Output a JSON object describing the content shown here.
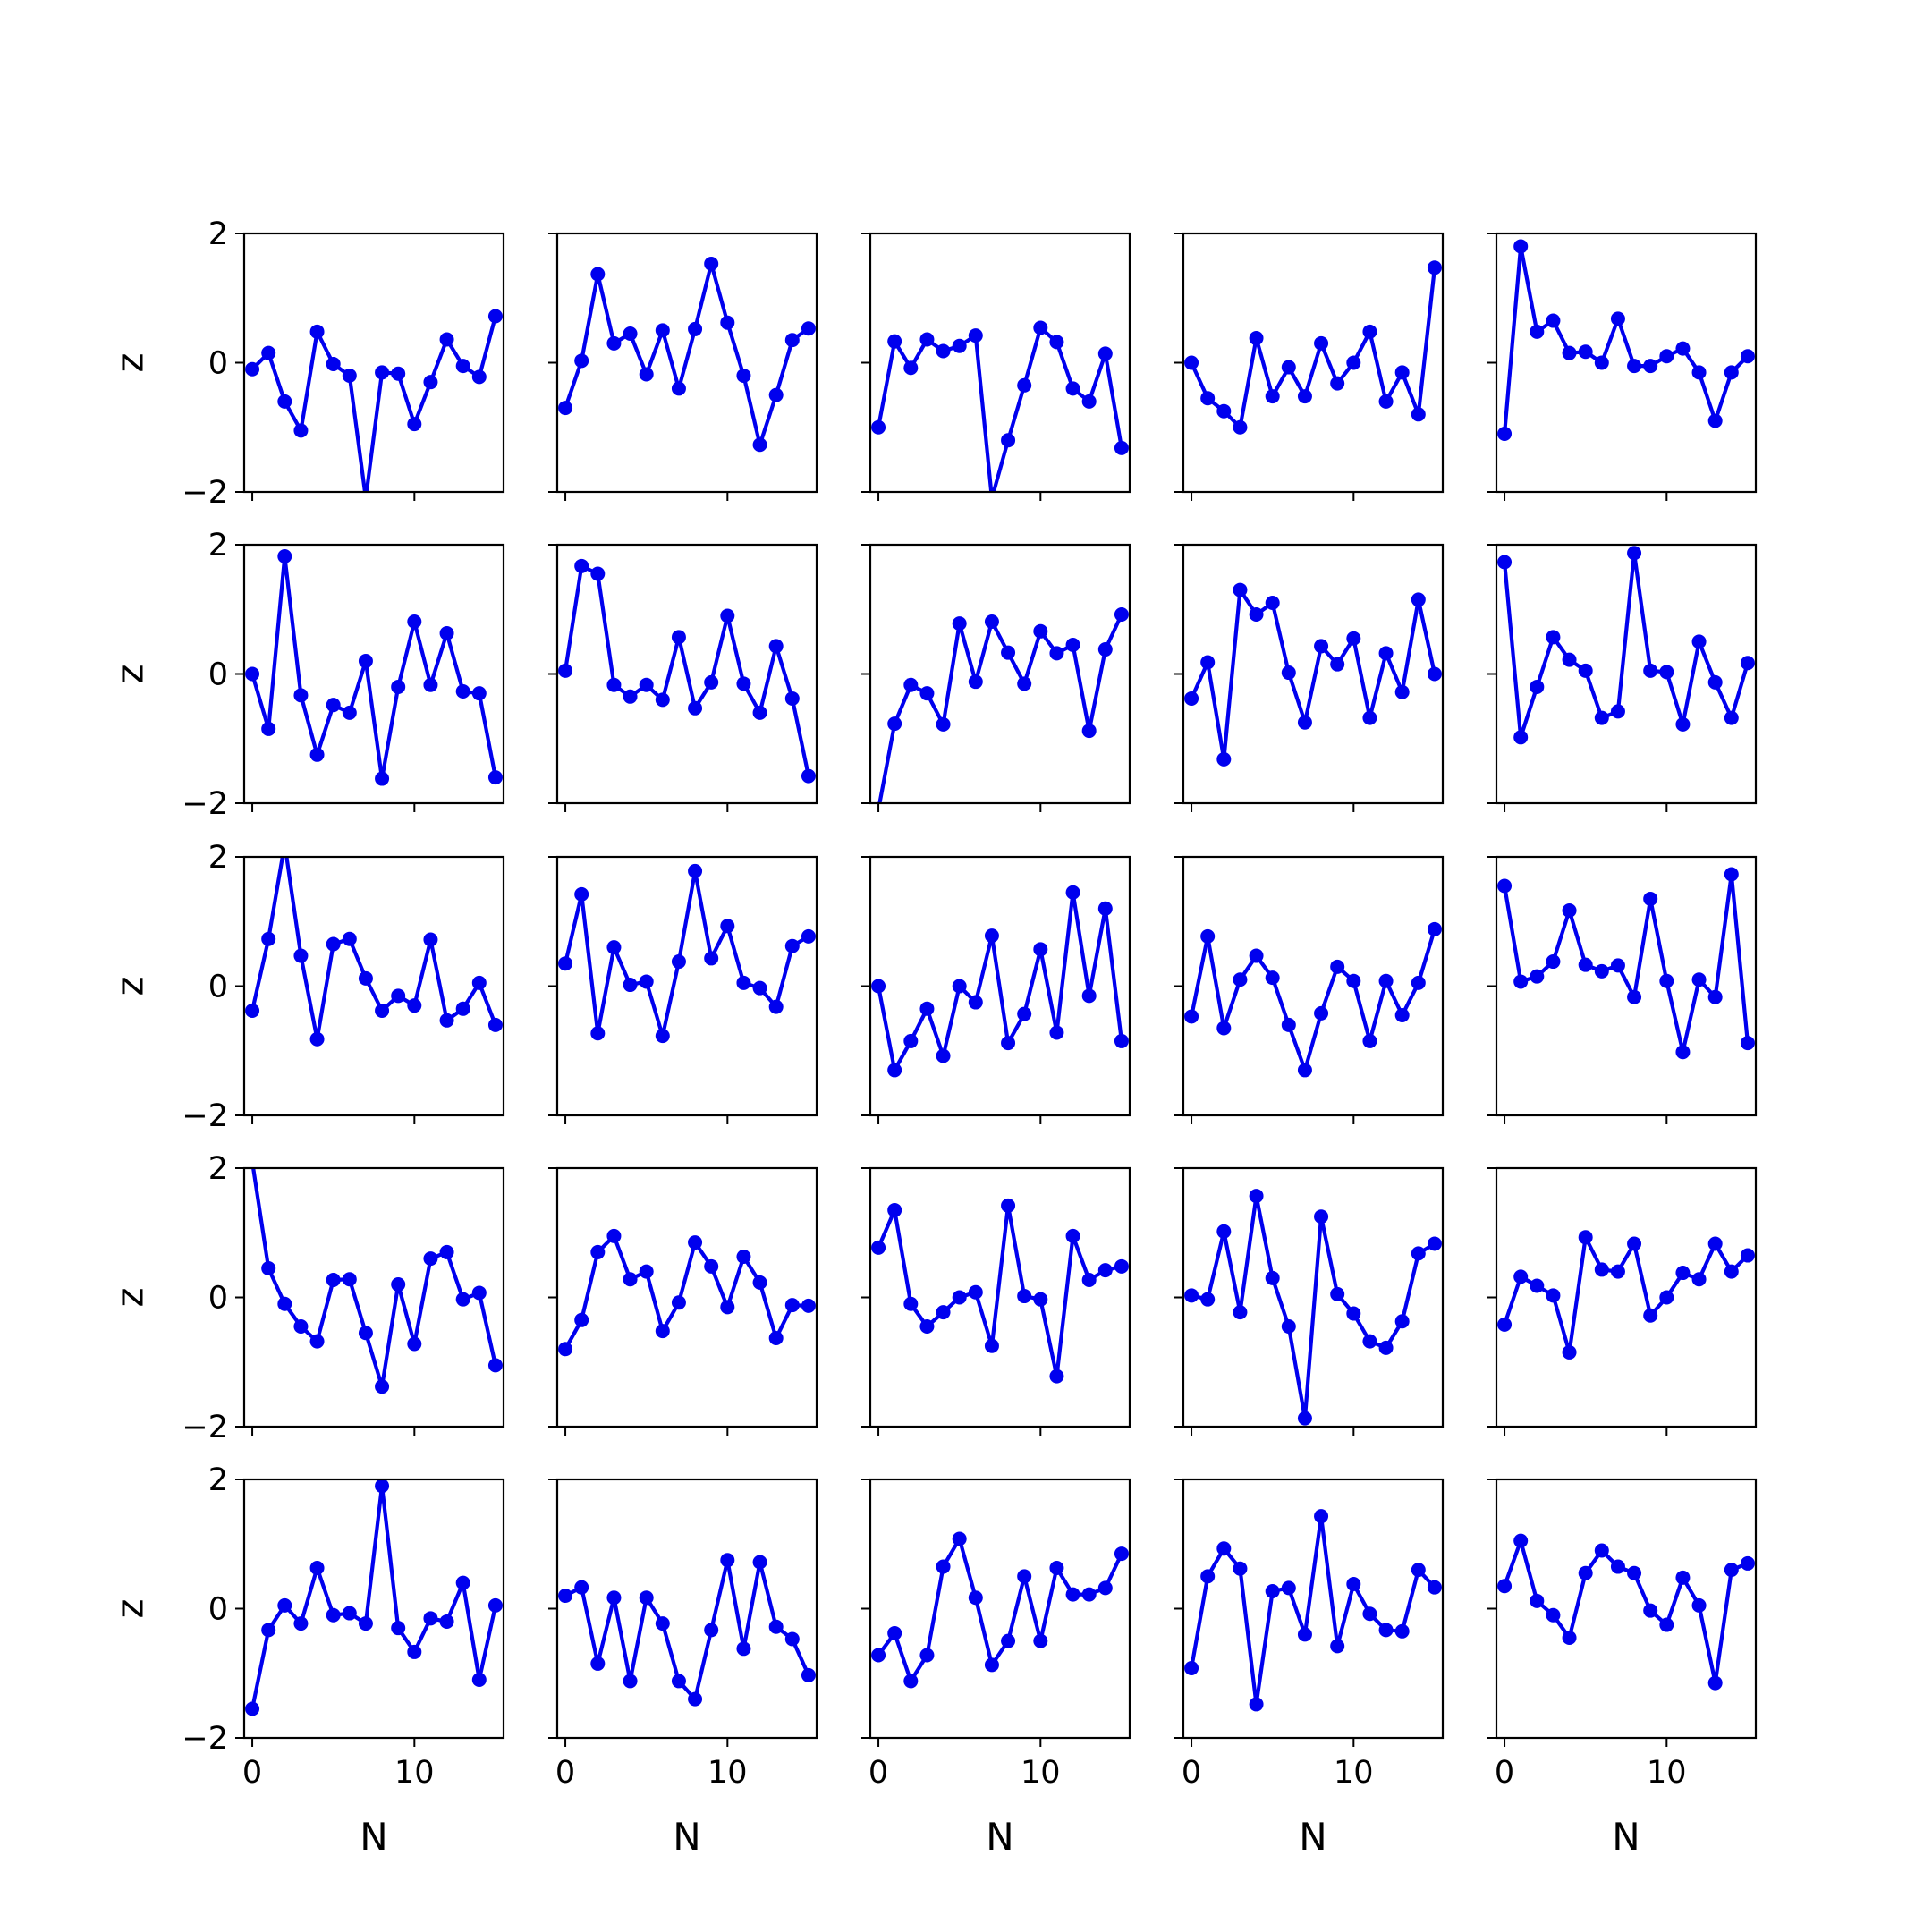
{
  "chart_data": {
    "type": "line",
    "layout": "5x5 small multiples",
    "xlabel": "N",
    "ylabel": "z",
    "x": [
      0,
      1,
      2,
      3,
      4,
      5,
      6,
      7,
      8,
      9,
      10,
      11,
      12,
      13,
      14,
      15
    ],
    "xlim": [
      -0.5,
      15.5
    ],
    "ylim": [
      -2,
      2
    ],
    "xticks": [
      0,
      10
    ],
    "yticks": [
      -2,
      0,
      2
    ],
    "line_color": "#0000ee",
    "grid": false,
    "subplots": [
      [
        -0.1,
        0.15,
        -0.6,
        -1.05,
        0.48,
        -0.02,
        -0.2,
        -2.1,
        -0.15,
        -0.17,
        -0.95,
        -0.3,
        0.36,
        -0.05,
        -0.22,
        0.72
      ],
      [
        -0.7,
        0.03,
        1.37,
        0.3,
        0.45,
        -0.18,
        0.5,
        -0.4,
        0.52,
        1.53,
        0.62,
        -0.2,
        -1.27,
        -0.5,
        0.35,
        0.53
      ],
      [
        -1.0,
        0.33,
        -0.08,
        0.36,
        0.18,
        0.26,
        0.42,
        -2.1,
        -1.2,
        -0.35,
        0.54,
        0.32,
        -0.4,
        -0.6,
        0.14,
        -1.32
      ],
      [
        0.0,
        -0.55,
        -0.75,
        -1.0,
        0.38,
        -0.52,
        -0.07,
        -0.52,
        0.3,
        -0.32,
        0.0,
        0.48,
        -0.6,
        -0.15,
        -0.8,
        1.47
      ],
      [
        -1.1,
        1.8,
        0.48,
        0.65,
        0.15,
        0.17,
        0.0,
        0.68,
        -0.05,
        -0.05,
        0.1,
        0.22,
        -0.15,
        -0.9,
        -0.15,
        0.1
      ],
      [
        0.0,
        -0.85,
        1.82,
        -0.33,
        -1.25,
        -0.48,
        -0.6,
        0.2,
        -1.62,
        -0.2,
        0.81,
        -0.17,
        0.63,
        -0.27,
        -0.3,
        -1.6
      ],
      [
        0.05,
        1.67,
        1.55,
        -0.17,
        -0.35,
        -0.17,
        -0.4,
        0.57,
        -0.53,
        -0.13,
        0.9,
        -0.15,
        -0.6,
        0.43,
        -0.38,
        -1.58
      ],
      [
        -2.1,
        -0.77,
        -0.17,
        -0.3,
        -0.78,
        0.78,
        -0.12,
        0.81,
        0.33,
        -0.15,
        0.66,
        0.32,
        0.45,
        -0.88,
        0.38,
        0.92
      ],
      [
        -0.38,
        0.18,
        -1.32,
        1.3,
        0.92,
        1.1,
        0.02,
        -0.75,
        0.43,
        0.15,
        0.55,
        -0.68,
        0.32,
        -0.28,
        1.15,
        0.0
      ],
      [
        1.73,
        -0.98,
        -0.2,
        0.57,
        0.22,
        0.05,
        -0.68,
        -0.58,
        1.87,
        0.05,
        0.03,
        -0.78,
        0.5,
        -0.13,
        -0.68,
        0.17
      ],
      [
        -0.38,
        0.73,
        2.2,
        0.47,
        -0.82,
        0.65,
        0.73,
        0.12,
        -0.38,
        -0.15,
        -0.3,
        0.72,
        -0.53,
        -0.35,
        0.05,
        -0.6
      ],
      [
        0.35,
        1.42,
        -0.73,
        0.6,
        0.02,
        0.07,
        -0.77,
        0.38,
        1.78,
        0.43,
        0.93,
        0.05,
        -0.03,
        -0.32,
        0.62,
        0.77
      ],
      [
        0.0,
        -1.3,
        -0.85,
        -0.35,
        -1.08,
        0.0,
        -0.25,
        0.78,
        -0.88,
        -0.43,
        0.57,
        -0.72,
        1.45,
        -0.15,
        1.2,
        -0.85
      ],
      [
        -0.47,
        0.77,
        -0.65,
        0.1,
        0.47,
        0.13,
        -0.6,
        -1.3,
        -0.42,
        0.3,
        0.08,
        -0.85,
        0.08,
        -0.45,
        0.05,
        0.88
      ],
      [
        1.55,
        0.07,
        0.15,
        0.38,
        1.17,
        0.33,
        0.23,
        0.32,
        -0.17,
        1.35,
        0.08,
        -1.02,
        0.1,
        -0.17,
        1.73,
        -0.88
      ],
      [
        2.1,
        0.45,
        -0.1,
        -0.45,
        -0.68,
        0.27,
        0.28,
        -0.55,
        -1.38,
        0.2,
        -0.72,
        0.6,
        0.7,
        -0.03,
        0.07,
        -1.05
      ],
      [
        -0.8,
        -0.35,
        0.7,
        0.95,
        0.28,
        0.4,
        -0.52,
        -0.08,
        0.85,
        0.48,
        -0.15,
        0.63,
        0.23,
        -0.63,
        -0.12,
        -0.13
      ],
      [
        0.77,
        1.35,
        -0.1,
        -0.45,
        -0.23,
        0.0,
        0.08,
        -0.75,
        1.42,
        0.02,
        -0.03,
        -1.22,
        0.95,
        0.27,
        0.42,
        0.48
      ],
      [
        0.03,
        -0.03,
        1.02,
        -0.23,
        1.57,
        0.3,
        -0.45,
        -1.87,
        1.25,
        0.05,
        -0.25,
        -0.68,
        -0.78,
        -0.37,
        0.68,
        0.83
      ],
      [
        -0.42,
        0.32,
        0.18,
        0.03,
        -0.85,
        0.93,
        0.43,
        0.4,
        0.83,
        -0.28,
        0.0,
        0.38,
        0.28,
        0.83,
        0.4,
        0.65
      ],
      [
        -1.55,
        -0.33,
        0.05,
        -0.23,
        0.63,
        -0.1,
        -0.07,
        -0.23,
        1.9,
        -0.3,
        -0.67,
        -0.15,
        -0.2,
        0.4,
        -1.1,
        0.05
      ],
      [
        0.2,
        0.33,
        -0.85,
        0.17,
        -1.12,
        0.17,
        -0.23,
        -1.12,
        -1.4,
        -0.33,
        0.75,
        -0.62,
        0.72,
        -0.28,
        -0.47,
        -1.03
      ],
      [
        -0.72,
        -0.38,
        -1.12,
        -0.72,
        0.65,
        1.08,
        0.17,
        -0.87,
        -0.5,
        0.5,
        -0.5,
        0.63,
        0.22,
        0.22,
        0.32,
        0.85
      ],
      [
        -0.92,
        0.5,
        0.93,
        0.62,
        -1.48,
        0.27,
        0.32,
        -0.4,
        1.43,
        -0.58,
        0.38,
        -0.08,
        -0.33,
        -0.35,
        0.6,
        0.33
      ],
      [
        0.35,
        1.05,
        0.12,
        -0.1,
        -0.45,
        0.55,
        0.9,
        0.65,
        0.55,
        -0.03,
        -0.25,
        0.48,
        0.05,
        -1.15,
        0.6,
        0.7
      ]
    ]
  }
}
